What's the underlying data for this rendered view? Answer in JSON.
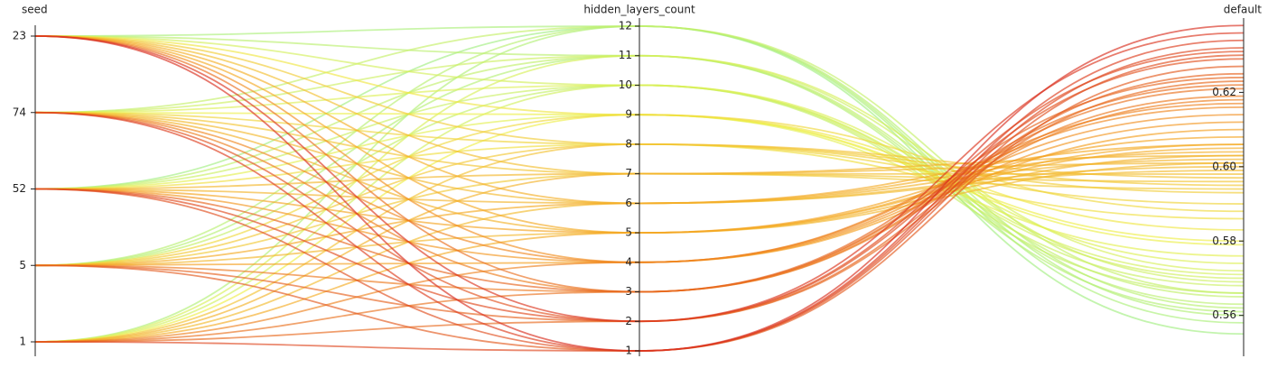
{
  "chart_data": {
    "type": "parallel",
    "dimensions": [
      {
        "label": "seed",
        "categories": [
          23,
          74,
          52,
          5,
          1
        ]
      },
      {
        "label": "hidden_layers_count",
        "ylim": [
          1,
          12
        ],
        "yticks": [
          1,
          2,
          3,
          4,
          5,
          6,
          7,
          8,
          9,
          10,
          11,
          12
        ]
      },
      {
        "label": "default",
        "ylim": [
          0.549,
          0.64
        ],
        "yticks": [
          0.56,
          0.58,
          {
            "value": 0.6,
            "label": "0.60"
          },
          0.62
        ]
      }
    ],
    "color_scale": [
      "#90ee90",
      "#eef04a",
      "#f5a020",
      "#d7261e"
    ],
    "lines": [
      [
        23,
        1,
        0.638
      ],
      [
        74,
        1,
        0.634
      ],
      [
        52,
        1,
        0.63
      ],
      [
        5,
        1,
        0.627
      ],
      [
        1,
        1,
        0.632
      ],
      [
        23,
        2,
        0.636
      ],
      [
        74,
        2,
        0.629
      ],
      [
        52,
        2,
        0.631
      ],
      [
        5,
        2,
        0.625
      ],
      [
        1,
        2,
        0.623
      ],
      [
        23,
        3,
        0.622
      ],
      [
        74,
        3,
        0.618
      ],
      [
        52,
        3,
        0.624
      ],
      [
        5,
        3,
        0.619
      ],
      [
        1,
        3,
        0.621
      ],
      [
        23,
        4,
        0.614
      ],
      [
        74,
        4,
        0.616
      ],
      [
        52,
        4,
        0.612
      ],
      [
        5,
        4,
        0.61
      ],
      [
        1,
        4,
        0.617
      ],
      [
        23,
        5,
        0.606
      ],
      [
        74,
        5,
        0.603
      ],
      [
        52,
        5,
        0.608
      ],
      [
        5,
        5,
        0.601
      ],
      [
        1,
        5,
        0.605
      ],
      [
        23,
        6,
        0.604
      ],
      [
        74,
        6,
        0.6
      ],
      [
        52,
        6,
        0.602
      ],
      [
        5,
        6,
        0.606
      ],
      [
        1,
        6,
        0.599
      ],
      [
        23,
        7,
        0.598
      ],
      [
        74,
        7,
        0.596
      ],
      [
        52,
        7,
        0.601
      ],
      [
        5,
        7,
        0.594
      ],
      [
        1,
        7,
        0.603
      ],
      [
        23,
        8,
        0.593
      ],
      [
        74,
        8,
        0.59
      ],
      [
        52,
        8,
        0.586
      ],
      [
        5,
        8,
        0.595
      ],
      [
        1,
        8,
        0.597
      ],
      [
        23,
        9,
        0.583
      ],
      [
        74,
        9,
        0.579
      ],
      [
        52,
        9,
        0.576
      ],
      [
        5,
        9,
        0.588
      ],
      [
        1,
        9,
        0.58
      ],
      [
        23,
        10,
        0.571
      ],
      [
        74,
        10,
        0.574
      ],
      [
        52,
        10,
        0.568
      ],
      [
        5,
        10,
        0.566
      ],
      [
        1,
        10,
        0.57
      ],
      [
        23,
        11,
        0.563
      ],
      [
        74,
        11,
        0.569
      ],
      [
        52,
        11,
        0.565
      ],
      [
        5,
        11,
        0.561
      ],
      [
        1,
        11,
        0.572
      ],
      [
        23,
        12,
        0.558
      ],
      [
        74,
        12,
        0.566
      ],
      [
        52,
        12,
        0.555
      ],
      [
        5,
        12,
        0.562
      ],
      [
        1,
        12,
        0.56
      ]
    ]
  }
}
